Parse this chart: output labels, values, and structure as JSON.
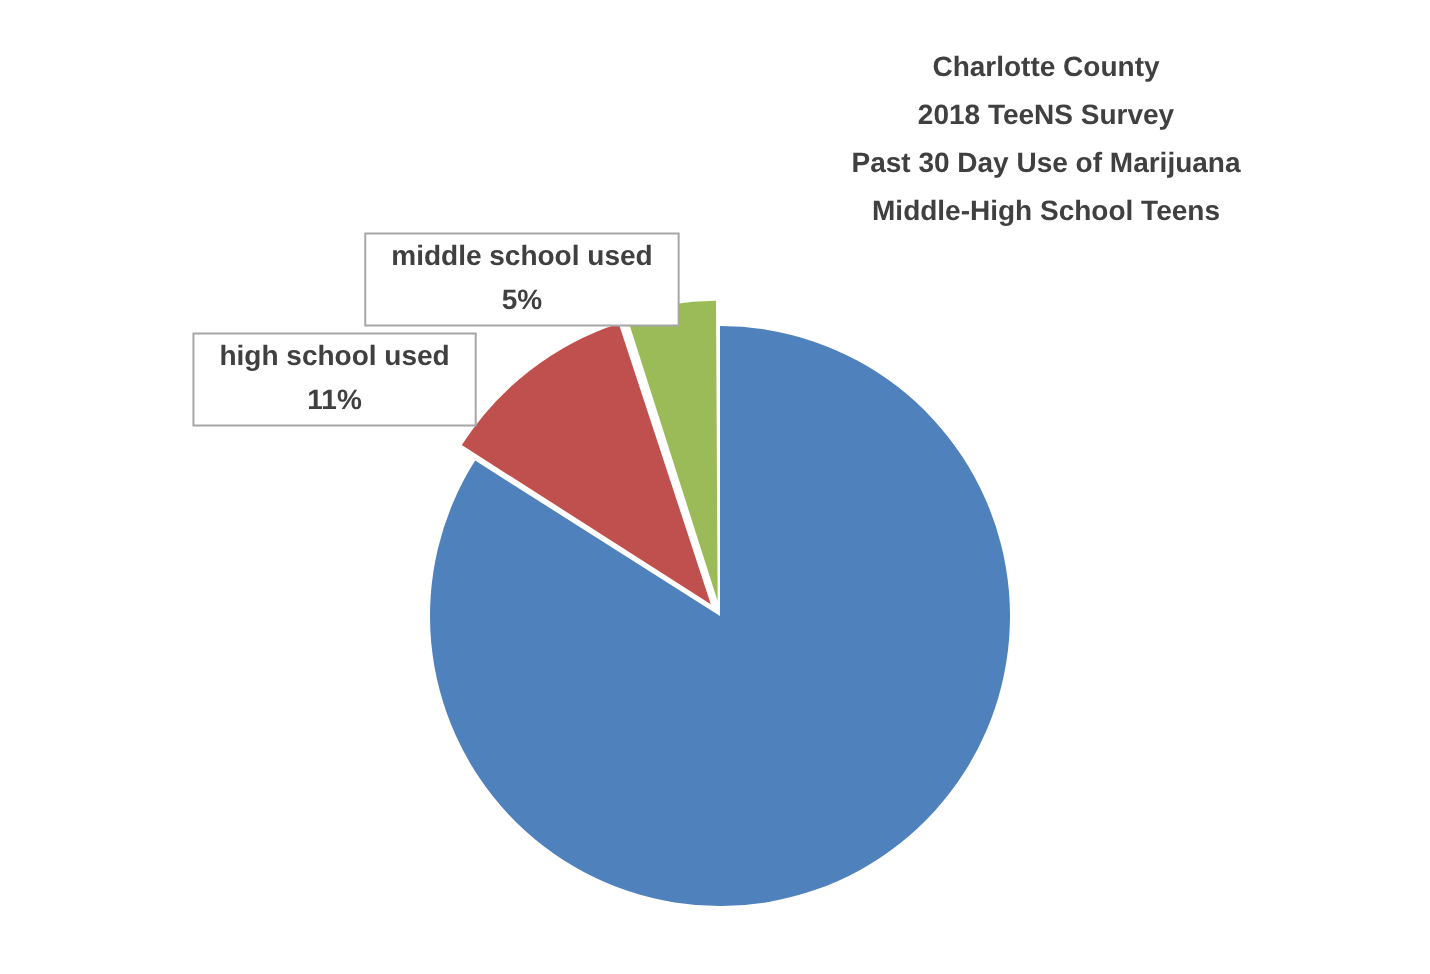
{
  "chart_data": {
    "type": "pie",
    "title": "Charlotte County\n2018 TeeNS Survey\nPast 30 Day Use of Marijuana\nMiddle-High School Teens",
    "categories": [
      null,
      "high school used",
      "middle school used"
    ],
    "values": [
      84,
      11,
      5
    ],
    "colors": [
      "#4f81bd",
      "#c0504d",
      "#9bbb59"
    ],
    "value_labels": [
      null,
      "11%",
      "5%"
    ],
    "legend": false
  }
}
